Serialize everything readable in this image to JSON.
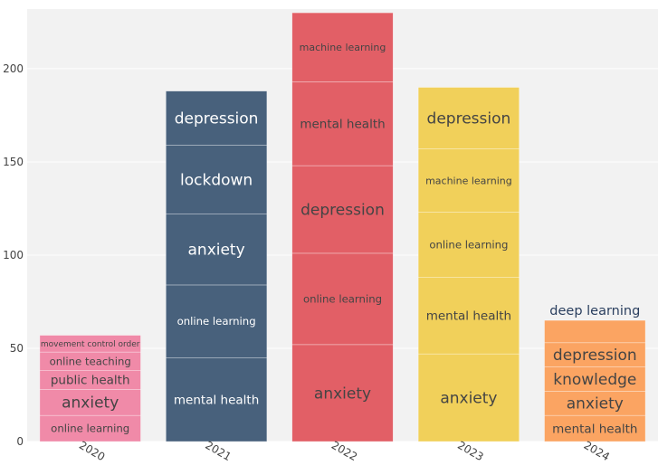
{
  "chart_data": {
    "type": "bar",
    "stacked": true,
    "title": "",
    "xlabel": "",
    "ylabel": "",
    "ylim": [
      0,
      232
    ],
    "yticks": [
      0,
      50,
      100,
      150,
      200
    ],
    "grid": true,
    "categories": [
      "2020",
      "2021",
      "2022",
      "2023",
      "2024"
    ],
    "colors": {
      "2020": "#f08aa8",
      "2021": "#48617c",
      "2022": "#e25f66",
      "2023": "#f1d05a",
      "2024": "#fba462"
    },
    "label_colors": {
      "2020": "#444444",
      "2021": "#ffffff",
      "2022": "#444444",
      "2023": "#444444",
      "2024": "#444444"
    },
    "bars": [
      {
        "category": "2020",
        "segments": [
          {
            "label": "online learning",
            "value": 14
          },
          {
            "label": "anxiety",
            "value": 14
          },
          {
            "label": "public health",
            "value": 10
          },
          {
            "label": "online teaching",
            "value": 10
          },
          {
            "label": "movement control order",
            "value": 9
          }
        ]
      },
      {
        "category": "2021",
        "segments": [
          {
            "label": "mental health",
            "value": 45
          },
          {
            "label": "online learning",
            "value": 39
          },
          {
            "label": "anxiety",
            "value": 38
          },
          {
            "label": "lockdown",
            "value": 37
          },
          {
            "label": "depression",
            "value": 29
          }
        ]
      },
      {
        "category": "2022",
        "segments": [
          {
            "label": "anxiety",
            "value": 52
          },
          {
            "label": "online learning",
            "value": 49
          },
          {
            "label": "depression",
            "value": 47
          },
          {
            "label": "mental health",
            "value": 45
          },
          {
            "label": "machine learning",
            "value": 37
          }
        ]
      },
      {
        "category": "2023",
        "segments": [
          {
            "label": "anxiety",
            "value": 47
          },
          {
            "label": "mental health",
            "value": 41
          },
          {
            "label": "online learning",
            "value": 35
          },
          {
            "label": "machine learning",
            "value": 34
          },
          {
            "label": "depression",
            "value": 33
          }
        ]
      },
      {
        "category": "2024",
        "segments": [
          {
            "label": "mental health",
            "value": 14
          },
          {
            "label": "anxiety",
            "value": 13
          },
          {
            "label": "knowledge",
            "value": 13
          },
          {
            "label": "depression",
            "value": 13
          },
          {
            "label": "deep learning",
            "value": 12
          }
        ]
      }
    ]
  }
}
